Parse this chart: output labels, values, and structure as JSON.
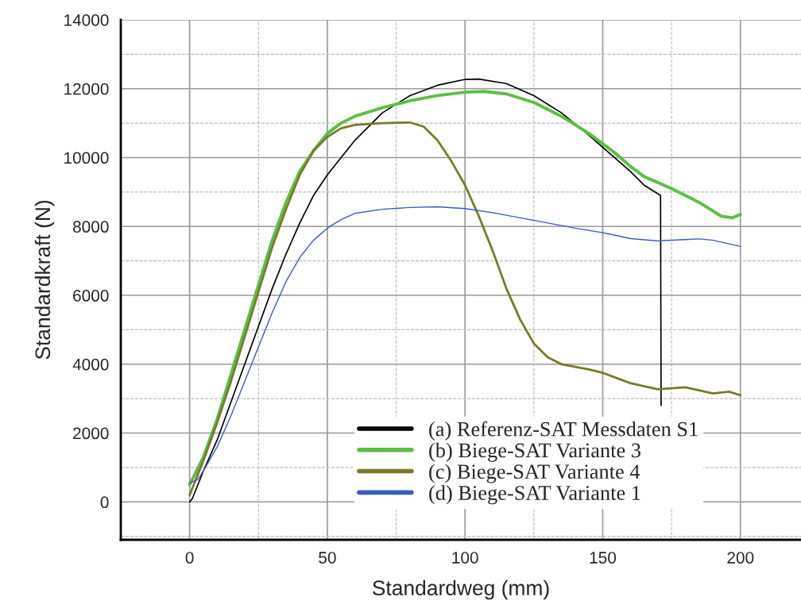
{
  "chart_data": {
    "type": "line",
    "xlabel": "Standardweg (mm)",
    "ylabel": "Standardkraft (N)",
    "xlim": [
      -25,
      222
    ],
    "xticks": [
      0,
      50,
      100,
      150,
      200
    ],
    "ylim": [
      -1100,
      14000
    ],
    "yticks": [
      0,
      2000,
      4000,
      6000,
      8000,
      10000,
      12000,
      14000
    ],
    "grid": true,
    "legend": "bottom",
    "marker": "none",
    "line_style": "solid",
    "series": [
      {
        "name": "(a) Referenz-SAT Messdaten S1",
        "color": "#000000",
        "x": [
          0,
          1,
          5,
          10,
          15,
          20,
          25,
          30,
          35,
          40,
          45,
          50,
          60,
          70,
          80,
          90,
          100,
          105,
          115,
          125,
          135,
          145,
          155,
          160,
          165,
          170,
          171,
          171.2
        ],
        "values": [
          0,
          100,
          900,
          1800,
          2900,
          4000,
          5100,
          6200,
          7200,
          8100,
          8900,
          9500,
          10500,
          11300,
          11800,
          12100,
          12270,
          12280,
          12150,
          11800,
          11300,
          10650,
          9950,
          9600,
          9200,
          8950,
          8900,
          2800
        ]
      },
      {
        "name": "(b) Biege-SAT Variante 3",
        "color": "#5bbf45",
        "x": [
          0,
          5,
          10,
          15,
          20,
          25,
          30,
          35,
          40,
          45,
          50,
          55,
          60,
          70,
          80,
          90,
          100,
          107,
          115,
          125,
          135,
          145,
          155,
          160,
          165,
          175,
          185,
          193,
          197,
          200
        ],
        "values": [
          500,
          1300,
          2400,
          3700,
          5000,
          6300,
          7600,
          8700,
          9600,
          10200,
          10700,
          11000,
          11200,
          11450,
          11650,
          11800,
          11900,
          11920,
          11850,
          11600,
          11200,
          10700,
          10100,
          9750,
          9450,
          9100,
          8700,
          8300,
          8250,
          8350
        ]
      },
      {
        "name": "(c) Biege-SAT Variante 4",
        "color": "#7a7a2a",
        "x": [
          0,
          5,
          10,
          15,
          20,
          25,
          30,
          35,
          40,
          45,
          50,
          55,
          60,
          70,
          80,
          85,
          90,
          95,
          100,
          105,
          110,
          115,
          120,
          125,
          130,
          135,
          145,
          150,
          160,
          170,
          180,
          190,
          196,
          200
        ],
        "values": [
          200,
          1200,
          2300,
          3500,
          4800,
          6100,
          7400,
          8500,
          9500,
          10200,
          10600,
          10850,
          10950,
          11000,
          11020,
          10900,
          10500,
          9900,
          9200,
          8300,
          7300,
          6200,
          5300,
          4600,
          4200,
          4000,
          3850,
          3750,
          3450,
          3270,
          3330,
          3150,
          3200,
          3100
        ]
      },
      {
        "name": "(d) Biege-SAT Variante 1",
        "color": "#3a5cbf",
        "x": [
          0,
          3,
          5,
          10,
          15,
          20,
          25,
          30,
          35,
          40,
          45,
          50,
          55,
          60,
          70,
          80,
          90,
          100,
          110,
          120,
          130,
          140,
          150,
          160,
          170,
          180,
          185,
          190,
          200
        ],
        "values": [
          550,
          650,
          900,
          1600,
          2500,
          3500,
          4500,
          5500,
          6400,
          7100,
          7600,
          7950,
          8200,
          8380,
          8500,
          8550,
          8570,
          8520,
          8400,
          8250,
          8100,
          7950,
          7820,
          7650,
          7580,
          7620,
          7640,
          7600,
          7420
        ]
      }
    ]
  }
}
